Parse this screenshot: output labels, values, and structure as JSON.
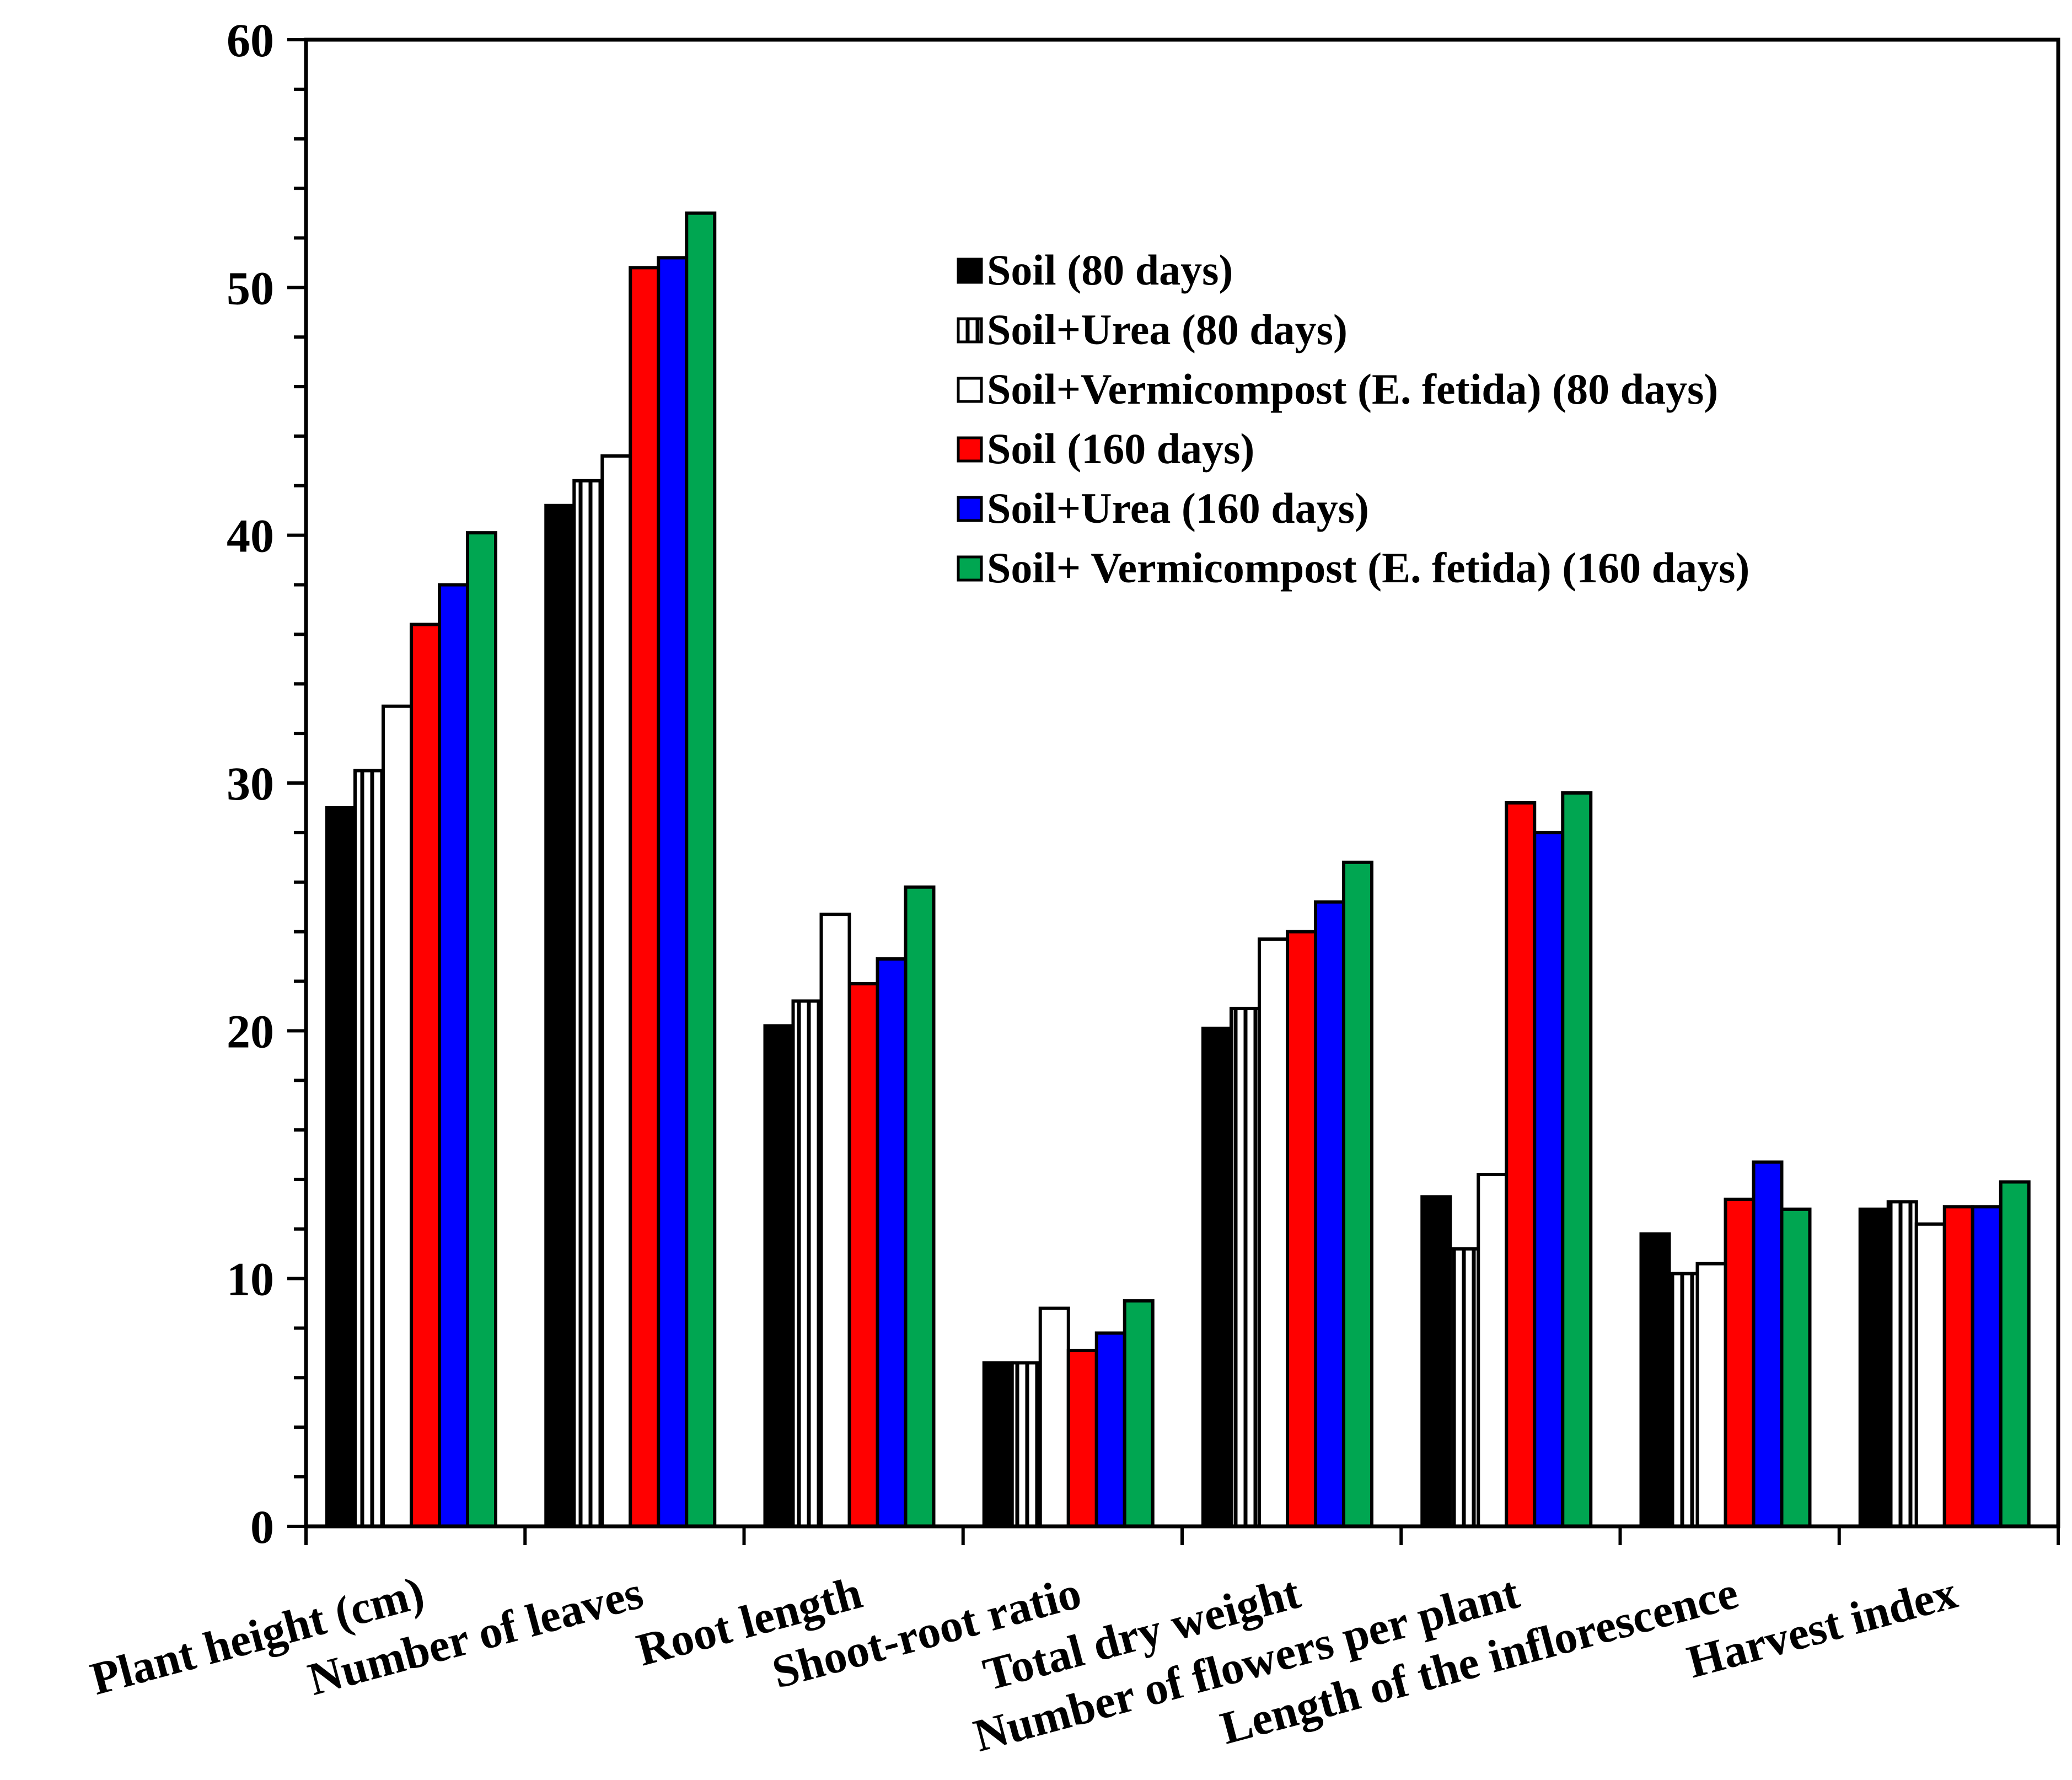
{
  "chart_data": {
    "type": "bar",
    "title": "",
    "xlabel": "",
    "ylabel": "",
    "ylim": [
      0,
      60
    ],
    "yticks": [
      0,
      10,
      20,
      30,
      40,
      50,
      60
    ],
    "categories": [
      "Plant height (cm)",
      "Number of leaves",
      "Root length",
      "Shoot-root ratio",
      "Total dry weight",
      "Number of flowers per plant",
      "Length of the  inflorescence",
      "Harvest index"
    ],
    "series": [
      {
        "name": "Soil (80 days)",
        "color": "#000000",
        "pattern": "solid",
        "values": [
          29.0,
          41.2,
          20.2,
          6.6,
          20.1,
          13.3,
          11.8,
          12.8
        ]
      },
      {
        "name": "Soil+Urea (80 days)",
        "color": "#ffffff",
        "pattern": "vertical-lines",
        "values": [
          30.5,
          42.2,
          21.2,
          6.6,
          20.9,
          11.2,
          10.2,
          13.1
        ]
      },
      {
        "name": "Soil+Vermicompost (E. fetida) (80 days)",
        "color": "#ffffff",
        "pattern": "none",
        "values": [
          33.1,
          43.2,
          24.7,
          8.8,
          23.7,
          14.2,
          10.6,
          12.2
        ]
      },
      {
        "name": "Soil (160 days)",
        "color": "#ff0000",
        "pattern": "solid",
        "values": [
          36.4,
          50.8,
          21.9,
          7.1,
          24.0,
          29.2,
          13.2,
          12.9
        ]
      },
      {
        "name": "Soil+Urea (160 days)",
        "color": "#0000ff",
        "pattern": "solid",
        "values": [
          38.0,
          51.2,
          22.9,
          7.8,
          25.2,
          28.0,
          14.7,
          12.9
        ]
      },
      {
        "name": "Soil+ Vermicompost (E. fetida) (160 days)",
        "color": "#00a651",
        "pattern": "solid",
        "values": [
          40.1,
          53.0,
          25.8,
          9.1,
          26.8,
          29.6,
          12.8,
          13.9
        ]
      }
    ],
    "legend_position": "top-right",
    "grid": false
  }
}
